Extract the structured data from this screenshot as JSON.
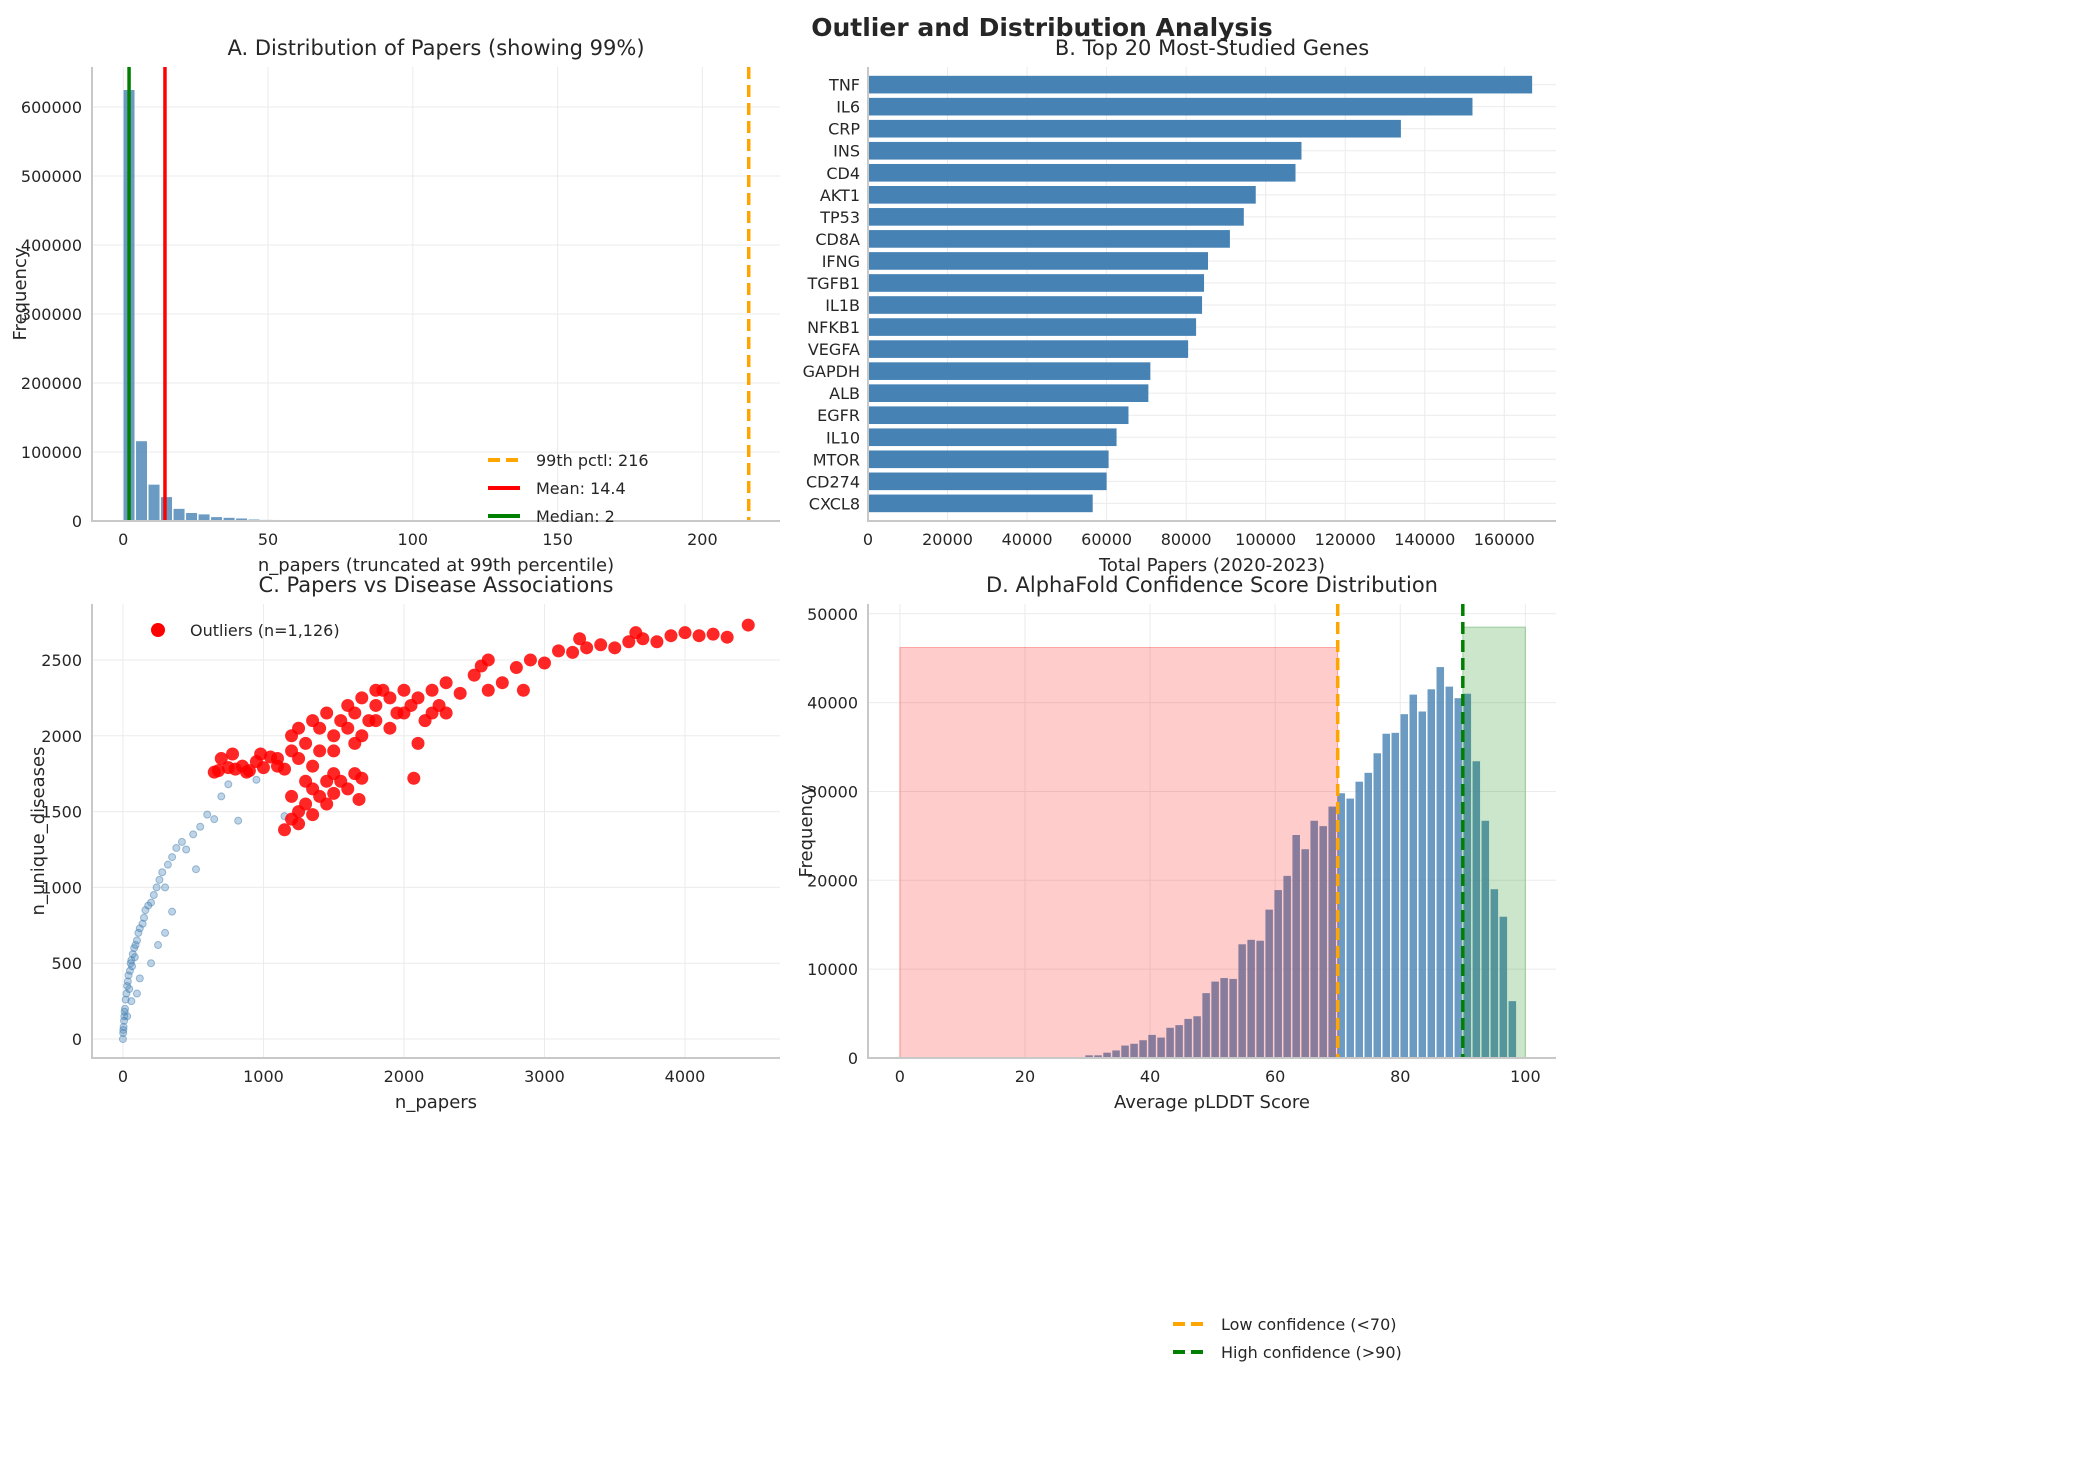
{
  "suptitle": "Outlier and Distribution Analysis",
  "chart_data": [
    {
      "type": "bar",
      "subtype": "histogram",
      "title": "A. Distribution of Papers (showing 99%)",
      "xlabel": "n_papers (truncated at 99th percentile)",
      "ylabel": "Frequency",
      "xlim": [
        -10.8,
        226.8
      ],
      "ylim": [
        0,
        658000
      ],
      "xticks": [
        0,
        50,
        100,
        150,
        200
      ],
      "yticks": [
        0,
        100000,
        200000,
        300000,
        400000,
        500000,
        600000
      ],
      "bin_start": 0,
      "bin_width": 4.32,
      "values": [
        625000,
        116000,
        53000,
        35000,
        18000,
        12000,
        10000,
        6000,
        5000,
        4000,
        2500,
        2000,
        1500,
        1000,
        800,
        600,
        400
      ],
      "color": "#4682b4",
      "lines": [
        {
          "label": "99th pctl: 216",
          "x": 216,
          "color": "#ffa500",
          "style": "dashed"
        },
        {
          "label": "Mean: 14.4",
          "x": 14.4,
          "color": "#ff0000",
          "style": "solid"
        },
        {
          "label": "Median: 2",
          "x": 2,
          "color": "#008000",
          "style": "solid"
        }
      ],
      "legend": "lower-center",
      "grid": true
    },
    {
      "type": "bar",
      "orientation": "horizontal",
      "title": "B. Top 20 Most-Studied Genes",
      "xlabel": "Total Papers (2020-2023)",
      "ylabel": "",
      "xlim": [
        0,
        173000
      ],
      "xticks": [
        0,
        20000,
        40000,
        60000,
        80000,
        100000,
        120000,
        140000,
        160000
      ],
      "categories": [
        "TNF",
        "IL6",
        "CRP",
        "INS",
        "CD4",
        "AKT1",
        "TP53",
        "CD8A",
        "IFNG",
        "TGFB1",
        "IL1B",
        "NFKB1",
        "VEGFA",
        "GAPDH",
        "ALB",
        "EGFR",
        "IL10",
        "MTOR",
        "CD274",
        "CXCL8"
      ],
      "values": [
        167000,
        152000,
        134000,
        109000,
        107500,
        97500,
        94500,
        91000,
        85500,
        84500,
        84000,
        82500,
        80500,
        71000,
        70500,
        65500,
        62500,
        60500,
        60000,
        56500
      ],
      "color": "#4682b4",
      "grid": true
    },
    {
      "type": "scatter",
      "title": "C. Papers vs Disease Associations",
      "xlabel": "n_papers",
      "ylabel": "n_unique_diseases",
      "xlim": [
        -220,
        4676
      ],
      "ylim": [
        -125,
        2869
      ],
      "xticks": [
        0,
        1000,
        2000,
        3000,
        4000
      ],
      "yticks": [
        0,
        500,
        1000,
        1500,
        2000,
        2500
      ],
      "legend": "upper-left",
      "grid": true,
      "series": [
        {
          "color": "#4682b4",
          "points": [
            [
              0,
              0
            ],
            [
              2,
              40
            ],
            [
              5,
              80
            ],
            [
              8,
              120
            ],
            [
              10,
              150
            ],
            [
              15,
              200
            ],
            [
              20,
              260
            ],
            [
              25,
              300
            ],
            [
              30,
              350
            ],
            [
              35,
              380
            ],
            [
              40,
              420
            ],
            [
              50,
              450
            ],
            [
              55,
              500
            ],
            [
              60,
              520
            ],
            [
              70,
              560
            ],
            [
              80,
              600
            ],
            [
              90,
              620
            ],
            [
              100,
              650
            ],
            [
              110,
              700
            ],
            [
              120,
              730
            ],
            [
              140,
              760
            ],
            [
              150,
              800
            ],
            [
              160,
              850
            ],
            [
              180,
              880
            ],
            [
              200,
              900
            ],
            [
              220,
              950
            ],
            [
              240,
              1000
            ],
            [
              260,
              1050
            ],
            [
              280,
              1100
            ],
            [
              300,
              1000
            ],
            [
              320,
              1150
            ],
            [
              350,
              1200
            ],
            [
              380,
              1260
            ],
            [
              420,
              1300
            ],
            [
              450,
              1250
            ],
            [
              500,
              1350
            ],
            [
              520,
              1120
            ],
            [
              550,
              1400
            ],
            [
              600,
              1480
            ],
            [
              650,
              1450
            ],
            [
              700,
              1600
            ],
            [
              750,
              1680
            ],
            [
              820,
              1440
            ],
            [
              950,
              1710
            ],
            [
              250,
              620
            ],
            [
              300,
              700
            ],
            [
              200,
              500
            ],
            [
              120,
              400
            ],
            [
              60,
              250
            ],
            [
              30,
              150
            ],
            [
              350,
              840
            ],
            [
              100,
              300
            ],
            [
              1150,
              1470
            ],
            [
              3,
              60
            ],
            [
              12,
              180
            ],
            [
              45,
              330
            ],
            [
              65,
              480
            ],
            [
              85,
              540
            ]
          ]
        },
        {
          "name": "Outliers (n=1,126)",
          "color": "#ff0000",
          "points": [
            [
              650,
              1760
            ],
            [
              700,
              1850
            ],
            [
              750,
              1790
            ],
            [
              800,
              1780
            ],
            [
              850,
              1800
            ],
            [
              900,
              1770
            ],
            [
              950,
              1830
            ],
            [
              1000,
              1790
            ],
            [
              1050,
              1860
            ],
            [
              1100,
              1800
            ],
            [
              1150,
              1780
            ],
            [
              1200,
              1900
            ],
            [
              680,
              1770
            ],
            [
              780,
              1880
            ],
            [
              880,
              1760
            ],
            [
              980,
              1880
            ],
            [
              1150,
              1380
            ],
            [
              1200,
              1450
            ],
            [
              1250,
              1500
            ],
            [
              1200,
              1600
            ],
            [
              1300,
              1550
            ],
            [
              1350,
              1650
            ],
            [
              1400,
              1600
            ],
            [
              1450,
              1700
            ],
            [
              1500,
              1750
            ],
            [
              1550,
              1700
            ],
            [
              1600,
              1650
            ],
            [
              1650,
              1750
            ],
            [
              1700,
              1720
            ],
            [
              1250,
              1420
            ],
            [
              1350,
              1480
            ],
            [
              1450,
              1550
            ],
            [
              1680,
              1580
            ],
            [
              1300,
              1700
            ],
            [
              1200,
              2000
            ],
            [
              1250,
              2050
            ],
            [
              1300,
              1950
            ],
            [
              1350,
              2100
            ],
            [
              1400,
              2050
            ],
            [
              1450,
              2150
            ],
            [
              1500,
              2000
            ],
            [
              1550,
              2100
            ],
            [
              1600,
              2200
            ],
            [
              1650,
              2150
            ],
            [
              1700,
              2250
            ],
            [
              1750,
              2100
            ],
            [
              1800,
              2200
            ],
            [
              1850,
              2300
            ],
            [
              1900,
              2250
            ],
            [
              1950,
              2150
            ],
            [
              2000,
              2300
            ],
            [
              2050,
              2200
            ],
            [
              2100,
              2250
            ],
            [
              2150,
              2100
            ],
            [
              2200,
              2300
            ],
            [
              2250,
              2200
            ],
            [
              2300,
              2350
            ],
            [
              2400,
              2280
            ],
            [
              2500,
              2400
            ],
            [
              2550,
              2460
            ],
            [
              2600,
              2300
            ],
            [
              2700,
              2350
            ],
            [
              2800,
              2450
            ],
            [
              2900,
              2500
            ],
            [
              3000,
              2480
            ],
            [
              3100,
              2560
            ],
            [
              3200,
              2550
            ],
            [
              3300,
              2580
            ],
            [
              3400,
              2600
            ],
            [
              3500,
              2580
            ],
            [
              3600,
              2620
            ],
            [
              3700,
              2640
            ],
            [
              3800,
              2620
            ],
            [
              3900,
              2660
            ],
            [
              4000,
              2680
            ],
            [
              4100,
              2660
            ],
            [
              4200,
              2670
            ],
            [
              4300,
              2650
            ],
            [
              4450,
              2730
            ],
            [
              1500,
              1900
            ],
            [
              1700,
              2000
            ],
            [
              1900,
              2050
            ],
            [
              2100,
              1950
            ],
            [
              2070,
              1720
            ],
            [
              1650,
              1950
            ],
            [
              2300,
              2150
            ],
            [
              2600,
              2500
            ],
            [
              3250,
              2640
            ],
            [
              3650,
              2680
            ],
            [
              2850,
              2300
            ],
            [
              1250,
              1850
            ],
            [
              1400,
              1900
            ],
            [
              1600,
              2050
            ],
            [
              1800,
              2100
            ],
            [
              2000,
              2150
            ],
            [
              1100,
              1850
            ],
            [
              1350,
              1800
            ],
            [
              1500,
              1620
            ],
            [
              1800,
              2300
            ],
            [
              2200,
              2150
            ]
          ]
        }
      ]
    },
    {
      "type": "bar",
      "subtype": "histogram",
      "title": "D. AlphaFold Confidence Score Distribution",
      "xlabel": "Average pLDDT Score",
      "ylabel": "Frequency",
      "xlim": [
        -5.1,
        104.9
      ],
      "ylim": [
        0,
        51100
      ],
      "xticks": [
        0,
        20,
        40,
        60,
        80,
        100
      ],
      "yticks": [
        0,
        10000,
        20000,
        30000,
        40000,
        50000
      ],
      "bin_start": 28.2,
      "bin_width": 1.44,
      "color": "#4682b4",
      "values": [
        100,
        300,
        300,
        600,
        850,
        1400,
        1600,
        2000,
        2600,
        2300,
        3400,
        3700,
        4400,
        4700,
        7300,
        8600,
        9000,
        8900,
        12800,
        13300,
        13200,
        16700,
        18900,
        20500,
        25100,
        23500,
        26700,
        26100,
        28300,
        29800,
        29200,
        31100,
        32100,
        34300,
        36500,
        36600,
        38700,
        40900,
        39000,
        41500,
        44000,
        41800,
        40500,
        41000,
        33400,
        26700,
        19000,
        15900,
        6400
      ],
      "spans": [
        {
          "x0": 0,
          "x1": 70,
          "height": 46200,
          "color": "#ff0000"
        },
        {
          "x0": 90,
          "x1": 100,
          "height": 48500,
          "color": "#008000"
        }
      ],
      "lines": [
        {
          "label": "Low confidence (<70)",
          "x": 70,
          "color": "#ffa500",
          "style": "dashed"
        },
        {
          "label": "High confidence (>90)",
          "x": 90,
          "color": "#008000",
          "style": "dashed"
        }
      ],
      "legend": "lower-left",
      "grid": true
    }
  ]
}
